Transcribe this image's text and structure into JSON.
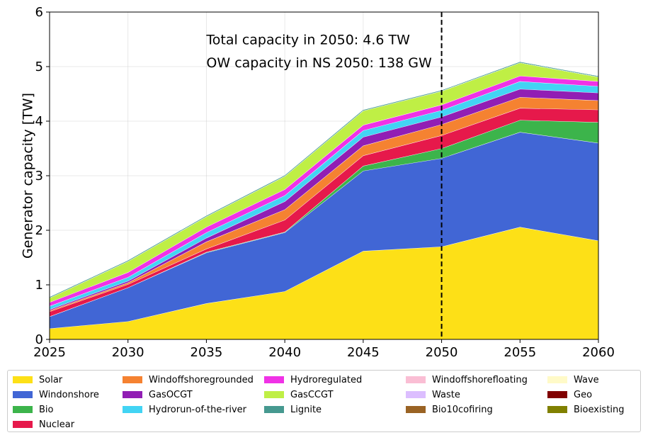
{
  "chart_data": {
    "type": "area",
    "stacked": true,
    "xlabel": "",
    "ylabel": "Generator capacity [TW]",
    "xlim": [
      2025,
      2060
    ],
    "ylim": [
      0,
      6
    ],
    "x_ticks": [
      "2025",
      "2030",
      "2035",
      "2040",
      "2045",
      "2050",
      "2055",
      "2060"
    ],
    "y_ticks": [
      "0",
      "1",
      "2",
      "3",
      "4",
      "5",
      "6"
    ],
    "grid": true,
    "vline": {
      "x": 2050,
      "style": "dashed",
      "color": "#000000"
    },
    "annotations": [
      "Total capacity in 2050: 4.6 TW",
      "OW capacity in NS 2050: 138 GW"
    ],
    "x": [
      2025,
      2030,
      2035,
      2040,
      2045,
      2050,
      2055,
      2060
    ],
    "series": [
      {
        "name": "Solar",
        "color": "#fde017",
        "values": [
          0.2,
          0.33,
          0.66,
          0.88,
          1.62,
          1.7,
          2.06,
          1.81
        ]
      },
      {
        "name": "Windonshore",
        "color": "#4166d5",
        "values": [
          0.22,
          0.62,
          0.93,
          1.08,
          1.47,
          1.62,
          1.74,
          1.79
        ]
      },
      {
        "name": "Bio",
        "color": "#3cb44b",
        "values": [
          0.0,
          0.0,
          0.01,
          0.01,
          0.09,
          0.18,
          0.22,
          0.38
        ]
      },
      {
        "name": "Nuclear",
        "color": "#e6194b",
        "values": [
          0.09,
          0.06,
          0.06,
          0.22,
          0.19,
          0.24,
          0.22,
          0.23
        ]
      },
      {
        "name": "Windoffshoregrounded",
        "color": "#f58231",
        "values": [
          0.02,
          0.03,
          0.13,
          0.19,
          0.18,
          0.2,
          0.2,
          0.17
        ]
      },
      {
        "name": "GasOCGT",
        "color": "#911eb4",
        "values": [
          0.02,
          0.03,
          0.07,
          0.15,
          0.16,
          0.14,
          0.15,
          0.14
        ]
      },
      {
        "name": "Hydrorun-of-the-river",
        "color": "#42d4f4",
        "values": [
          0.06,
          0.07,
          0.1,
          0.11,
          0.12,
          0.12,
          0.14,
          0.12
        ]
      },
      {
        "name": "Hydroregulated",
        "color": "#f032e6",
        "values": [
          0.07,
          0.09,
          0.1,
          0.11,
          0.1,
          0.1,
          0.1,
          0.09
        ]
      },
      {
        "name": "GasCCGT",
        "color": "#bfef45",
        "values": [
          0.08,
          0.2,
          0.19,
          0.24,
          0.26,
          0.25,
          0.24,
          0.08
        ]
      },
      {
        "name": "Lignite",
        "color": "#469990",
        "values": [
          0.01,
          0.01,
          0.01,
          0.01,
          0.01,
          0.01,
          0.01,
          0.01
        ]
      },
      {
        "name": "Windoffshorefloating",
        "color": "#fabed4",
        "values": [
          0,
          0,
          0,
          0,
          0,
          0,
          0,
          0
        ]
      },
      {
        "name": "Waste",
        "color": "#dcbeff",
        "values": [
          0,
          0,
          0,
          0,
          0,
          0,
          0,
          0
        ]
      },
      {
        "name": "Bio10cofiring",
        "color": "#9a6324",
        "values": [
          0,
          0,
          0,
          0,
          0,
          0,
          0,
          0
        ]
      },
      {
        "name": "Wave",
        "color": "#fffac8",
        "values": [
          0,
          0,
          0,
          0,
          0,
          0,
          0,
          0
        ]
      },
      {
        "name": "Geo",
        "color": "#800000",
        "values": [
          0,
          0,
          0,
          0,
          0,
          0,
          0,
          0
        ]
      },
      {
        "name": "Bioexisting",
        "color": "#808000",
        "values": [
          0,
          0,
          0,
          0,
          0,
          0,
          0,
          0
        ]
      }
    ],
    "legend": {
      "placement": "bottom",
      "columns": 5
    }
  }
}
